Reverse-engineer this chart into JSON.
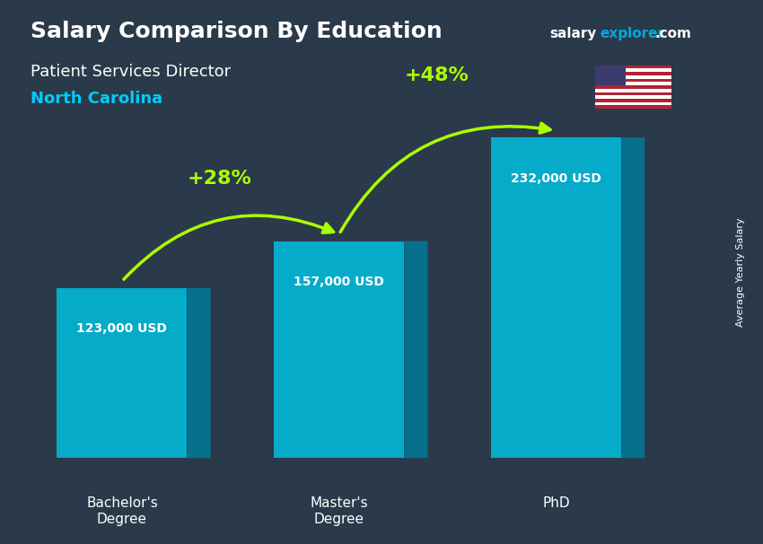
{
  "title_line1": "Salary Comparison By Education",
  "title_line2": "Patient Services Director",
  "title_line3": "North Carolina",
  "watermark": "salaryexplorer.com",
  "ylabel": "Average Yearly Salary",
  "categories": [
    "Bachelor's\nDegree",
    "Master's\nDegree",
    "PhD"
  ],
  "values": [
    123000,
    157000,
    232000
  ],
  "value_labels": [
    "123,000 USD",
    "157,000 USD",
    "232,000 USD"
  ],
  "pct_labels": [
    "+28%",
    "+48%"
  ],
  "bar_color_top": "#00d4f0",
  "bar_color_mid": "#00aacc",
  "bar_color_side": "#007a99",
  "background_color": "#1a1a2e",
  "title1_color": "#ffffff",
  "title2_color": "#ffffff",
  "title3_color": "#00ccff",
  "value_label_color": "#ffffff",
  "pct_color": "#aaff00",
  "arrow_color": "#aaff00",
  "watermark_color": "#00aadd"
}
